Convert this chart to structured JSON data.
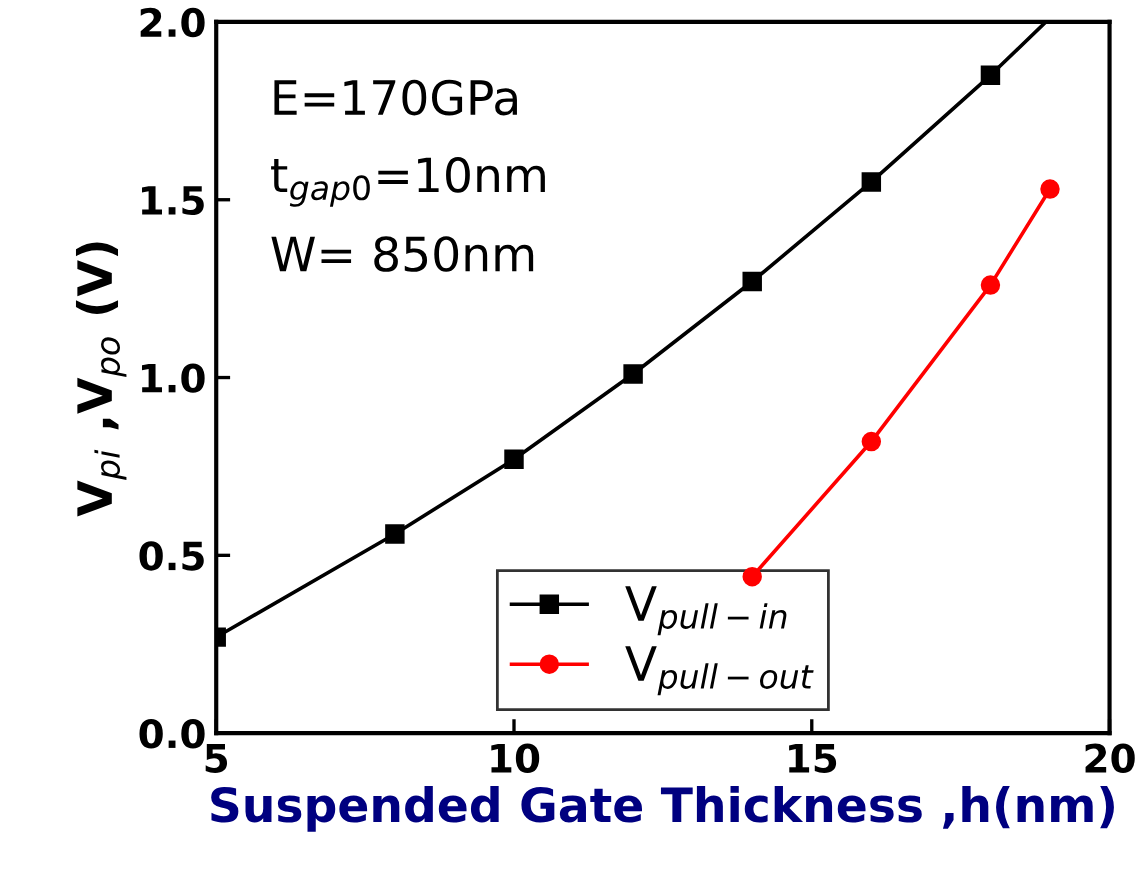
{
  "chart_data": {
    "type": "line",
    "xlabel": "Suspended Gate Thickness ,h(nm)",
    "ylabel": "V$_{pi}$ ,V$_{po}$ (V)",
    "series": [
      {
        "name": "V$_{pull−in}$",
        "color": "#000000",
        "marker": "square",
        "x": [
          5,
          8,
          10,
          12,
          14,
          16,
          18,
          18.93
        ],
        "values": [
          0.27,
          0.56,
          0.77,
          1.01,
          1.27,
          1.55,
          1.85,
          2.0
        ]
      },
      {
        "name": "V$_{pull−out}$",
        "color": "#ff0000",
        "marker": "circle",
        "x": [
          14,
          16,
          18,
          19
        ],
        "values": [
          0.44,
          0.82,
          1.26,
          1.53
        ]
      }
    ],
    "xlim": [
      5,
      20
    ],
    "xticks": [
      5,
      10,
      15,
      20
    ],
    "ylim": [
      0,
      2.0
    ],
    "yticks": [
      {
        "value": 0,
        "label": "0.0"
      },
      0.5,
      {
        "value": 1,
        "label": "1.0"
      },
      1.5,
      {
        "value": 2,
        "label": "2.0"
      }
    ],
    "annotations": [
      "E=170GPa",
      "t$_{gap0}$=10nm",
      "W= 850nm"
    ],
    "legend": "bottom",
    "grid": false,
    "line_style": "solid"
  }
}
